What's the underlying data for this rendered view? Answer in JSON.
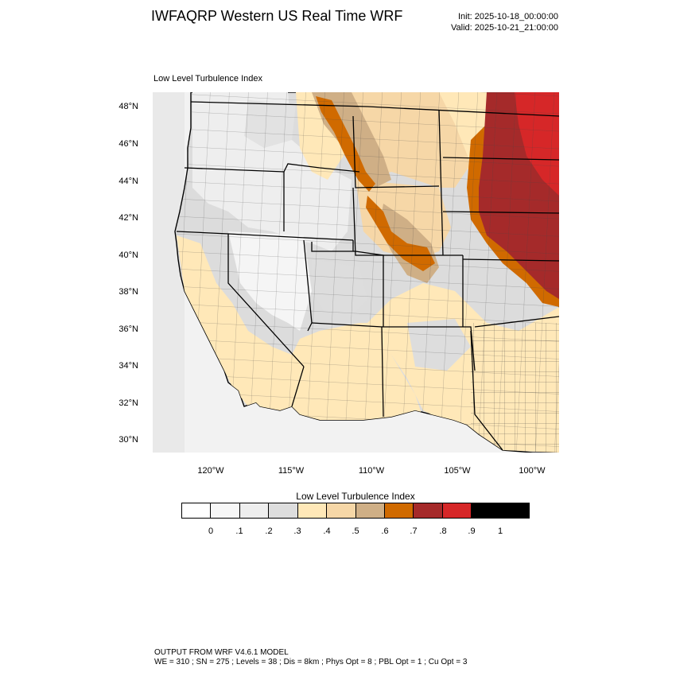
{
  "title": "IWFAQRP Western US Real Time WRF",
  "init_time": "Init: 2025-10-18_00:00:00",
  "valid_time": "Valid: 2025-10-21_21:00:00",
  "field_name": "Low Level Turbulence Index",
  "map": {
    "latitude_labels": [
      "48°N",
      "46°N",
      "44°N",
      "42°N",
      "40°N",
      "38°N",
      "36°N",
      "34°N",
      "32°N",
      "30°N"
    ],
    "longitude_labels": [
      "120°W",
      "115°W",
      "110°W",
      "105°W",
      "100°W"
    ],
    "lat_range": [
      29.4,
      48.9
    ],
    "lon_range": [
      -123.6,
      -98.4
    ],
    "gridlines": false
  },
  "colorbar": {
    "title": "Low Level Turbulence Index",
    "colors": [
      "#ffffff",
      "#f7f7f7",
      "#eeeeee",
      "#dddddd",
      "#ffe8b8",
      "#f6d7a7",
      "#cfaf86",
      "#d06a00",
      "#a52a2a",
      "#d62728",
      "#000000"
    ],
    "tick_labels": [
      "0",
      ".1",
      ".2",
      ".3",
      ".4",
      ".5",
      ".6",
      ".7",
      ".8",
      ".9",
      "1"
    ]
  },
  "footer": {
    "line1": "OUTPUT FROM WRF V4.6.1 MODEL",
    "line2": "WE = 310 ; SN = 275 ; Levels = 38 ; Dis = 8km ; Phys Opt = 8 ; PBL Opt = 1 ; Cu Opt = 3"
  }
}
